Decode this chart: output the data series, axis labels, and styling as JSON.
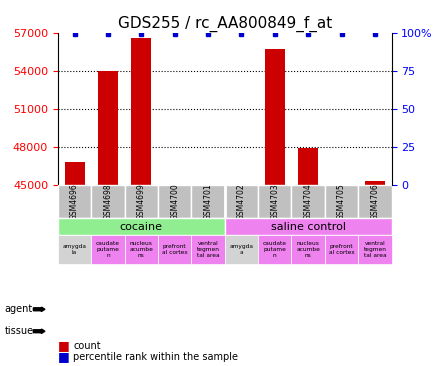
{
  "title": "GDS255 / rc_AA800849_f_at",
  "samples": [
    "GSM4696",
    "GSM4698",
    "GSM4699",
    "GSM4700",
    "GSM4701",
    "GSM4702",
    "GSM4703",
    "GSM4704",
    "GSM4705",
    "GSM4706"
  ],
  "counts": [
    46800,
    54000,
    56600,
    45000,
    45000,
    45000,
    55700,
    47900,
    45000,
    45300
  ],
  "percentiles": [
    100,
    100,
    100,
    100,
    100,
    100,
    100,
    100,
    100,
    100
  ],
  "ymin": 45000,
  "ymax": 57000,
  "yticks": [
    45000,
    48000,
    51000,
    54000,
    57000
  ],
  "ytick_labels": [
    "45000",
    "48000",
    "51000",
    "54000",
    "57000"
  ],
  "right_yticks": [
    0,
    25,
    50,
    75,
    100
  ],
  "right_ytick_labels": [
    "0",
    "25",
    "50",
    "75",
    "100%"
  ],
  "agent_groups": [
    {
      "label": "cocaine",
      "start": 0,
      "end": 5,
      "color": "#90ee90"
    },
    {
      "label": "saline control",
      "start": 5,
      "end": 10,
      "color": "#ee82ee"
    }
  ],
  "tissue_colors": [
    "#d3d3d3",
    "#ee82ee",
    "#ee82ee",
    "#ee82ee",
    "#ee82ee",
    "#d3d3d3",
    "#ee82ee",
    "#ee82ee",
    "#ee82ee",
    "#ee82ee"
  ],
  "tissue_labels": [
    "amygda\nla",
    "caudate\nputame\nn",
    "nucleus\nacumbe\nns",
    "prefront\nal cortex",
    "ventral\ntegmen\ntal area",
    "amygda\na",
    "caudate\nputame\nn",
    "nucleus\nacumbe\nns",
    "prefront\nal cortex",
    "ventral\ntegmen\ntal area"
  ],
  "bar_color": "#cc0000",
  "percentile_color": "#0000cc",
  "background_color": "#ffffff",
  "grid_color": "#000000",
  "title_fontsize": 11,
  "tick_fontsize": 8,
  "label_fontsize": 8
}
